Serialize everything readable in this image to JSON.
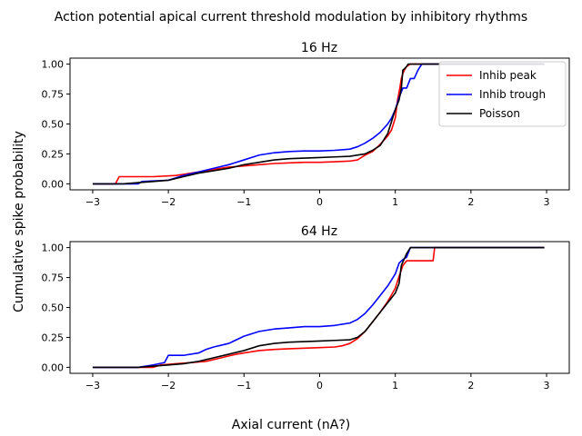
{
  "figure": {
    "suptitle": "Action potential apical current threshold modulation by inhibitory rhythms",
    "shared_ylabel": "Cumulative spike probability",
    "shared_xlabel": "Axial current (nA?)"
  },
  "chart_data": [
    {
      "type": "line",
      "title": "16 Hz",
      "xlabel": "",
      "ylabel": "",
      "xlim": [
        -3.3,
        3.3
      ],
      "ylim": [
        -0.05,
        1.05
      ],
      "xticks": [
        -3,
        -2,
        -1,
        0,
        1,
        2,
        3
      ],
      "xtick_labels": [
        "−3",
        "−2",
        "−1",
        "0",
        "1",
        "2",
        "3"
      ],
      "yticks": [
        0.0,
        0.25,
        0.5,
        0.75,
        1.0
      ],
      "ytick_labels": [
        "0.00",
        "0.25",
        "0.50",
        "0.75",
        "1.00"
      ],
      "grid": false,
      "legend": "upper-right",
      "series": [
        {
          "name": "Inhib peak",
          "color": "#ff0000",
          "x": [
            -3.0,
            -2.7,
            -2.65,
            -2.2,
            -1.9,
            -1.8,
            -1.6,
            -1.4,
            -1.2,
            -1.0,
            -0.8,
            -0.6,
            -0.4,
            -0.2,
            0.0,
            0.2,
            0.4,
            0.5,
            0.6,
            0.7,
            0.8,
            0.9,
            0.95,
            1.0,
            1.03,
            1.06,
            1.08,
            1.1,
            1.12,
            1.15,
            1.2,
            1.3,
            1.5,
            2.0,
            2.5,
            2.97
          ],
          "y": [
            0.0,
            0.0,
            0.06,
            0.06,
            0.07,
            0.08,
            0.1,
            0.12,
            0.14,
            0.15,
            0.16,
            0.17,
            0.175,
            0.18,
            0.18,
            0.185,
            0.19,
            0.2,
            0.24,
            0.27,
            0.33,
            0.4,
            0.45,
            0.55,
            0.7,
            0.8,
            0.88,
            0.92,
            0.95,
            0.98,
            1.0,
            1.0,
            1.0,
            1.0,
            1.0,
            1.0
          ]
        },
        {
          "name": "Inhib trough",
          "color": "#0000ff",
          "x": [
            -3.0,
            -2.4,
            -2.35,
            -2.0,
            -1.8,
            -1.6,
            -1.4,
            -1.2,
            -1.0,
            -0.8,
            -0.6,
            -0.4,
            -0.2,
            0.0,
            0.2,
            0.4,
            0.5,
            0.6,
            0.7,
            0.8,
            0.9,
            0.95,
            1.0,
            1.05,
            1.1,
            1.15,
            1.2,
            1.25,
            1.3,
            1.32,
            1.35,
            1.5,
            2.0,
            2.5,
            2.97
          ],
          "y": [
            0.0,
            0.0,
            0.02,
            0.03,
            0.07,
            0.1,
            0.13,
            0.16,
            0.2,
            0.24,
            0.26,
            0.27,
            0.275,
            0.275,
            0.28,
            0.29,
            0.31,
            0.34,
            0.38,
            0.43,
            0.5,
            0.55,
            0.62,
            0.72,
            0.8,
            0.8,
            0.88,
            0.88,
            0.95,
            0.97,
            1.0,
            1.0,
            1.0,
            1.0,
            1.0
          ]
        },
        {
          "name": "Poisson",
          "color": "#000000",
          "x": [
            -3.0,
            -2.6,
            -2.4,
            -2.2,
            -2.0,
            -1.8,
            -1.6,
            -1.4,
            -1.2,
            -1.0,
            -0.8,
            -0.6,
            -0.4,
            -0.2,
            0.0,
            0.2,
            0.4,
            0.6,
            0.7,
            0.8,
            0.9,
            0.95,
            1.0,
            1.05,
            1.08,
            1.1,
            1.12,
            1.15,
            1.17,
            1.2,
            1.5,
            2.0,
            2.5,
            2.97
          ],
          "y": [
            0.0,
            0.0,
            0.01,
            0.02,
            0.03,
            0.06,
            0.09,
            0.11,
            0.13,
            0.16,
            0.18,
            0.2,
            0.21,
            0.215,
            0.22,
            0.225,
            0.23,
            0.25,
            0.28,
            0.32,
            0.42,
            0.52,
            0.62,
            0.7,
            0.8,
            0.95,
            0.96,
            0.98,
            1.0,
            1.0,
            1.0,
            1.0,
            1.0,
            1.0
          ]
        }
      ]
    },
    {
      "type": "line",
      "title": "64 Hz",
      "xlabel": "",
      "ylabel": "",
      "xlim": [
        -3.3,
        3.3
      ],
      "ylim": [
        -0.05,
        1.05
      ],
      "xticks": [
        -3,
        -2,
        -1,
        0,
        1,
        2,
        3
      ],
      "xtick_labels": [
        "−3",
        "−2",
        "−1",
        "0",
        "1",
        "2",
        "3"
      ],
      "yticks": [
        0.0,
        0.25,
        0.5,
        0.75,
        1.0
      ],
      "ytick_labels": [
        "0.00",
        "0.25",
        "0.50",
        "0.75",
        "1.00"
      ],
      "grid": false,
      "legend": "none",
      "series": [
        {
          "name": "Inhib peak",
          "color": "#ff0000",
          "x": [
            -3.0,
            -2.2,
            -2.1,
            -1.9,
            -1.7,
            -1.5,
            -1.3,
            -1.1,
            -1.0,
            -0.8,
            -0.6,
            -0.4,
            -0.2,
            0.0,
            0.2,
            0.3,
            0.4,
            0.5,
            0.6,
            0.7,
            0.8,
            0.9,
            1.0,
            1.05,
            1.1,
            1.15,
            1.2,
            1.5,
            1.52,
            2.0,
            2.5,
            2.97
          ],
          "y": [
            0.0,
            0.0,
            0.02,
            0.03,
            0.04,
            0.05,
            0.08,
            0.11,
            0.12,
            0.14,
            0.15,
            0.155,
            0.16,
            0.165,
            0.17,
            0.18,
            0.2,
            0.24,
            0.3,
            0.38,
            0.46,
            0.55,
            0.66,
            0.76,
            0.85,
            0.89,
            0.89,
            0.89,
            1.0,
            1.0,
            1.0,
            1.0
          ]
        },
        {
          "name": "Inhib trough",
          "color": "#0000ff",
          "x": [
            -3.0,
            -2.4,
            -2.2,
            -2.05,
            -2.0,
            -1.8,
            -1.6,
            -1.5,
            -1.4,
            -1.2,
            -1.0,
            -0.8,
            -0.6,
            -0.4,
            -0.2,
            0.0,
            0.2,
            0.4,
            0.5,
            0.6,
            0.7,
            0.8,
            0.9,
            1.0,
            1.05,
            1.1,
            1.15,
            1.2,
            1.3,
            1.5,
            2.0,
            2.5,
            2.97
          ],
          "y": [
            0.0,
            0.0,
            0.02,
            0.04,
            0.1,
            0.1,
            0.12,
            0.15,
            0.17,
            0.2,
            0.26,
            0.3,
            0.32,
            0.33,
            0.34,
            0.34,
            0.35,
            0.37,
            0.4,
            0.45,
            0.52,
            0.6,
            0.68,
            0.78,
            0.87,
            0.9,
            0.92,
            1.0,
            1.0,
            1.0,
            1.0,
            1.0,
            1.0
          ]
        },
        {
          "name": "Poisson",
          "color": "#000000",
          "x": [
            -3.0,
            -2.4,
            -2.2,
            -2.0,
            -1.8,
            -1.6,
            -1.4,
            -1.2,
            -1.0,
            -0.8,
            -0.6,
            -0.4,
            -0.2,
            0.0,
            0.2,
            0.4,
            0.5,
            0.6,
            0.7,
            0.8,
            0.9,
            1.0,
            1.05,
            1.08,
            1.1,
            1.15,
            1.2,
            1.5,
            2.0,
            2.5,
            2.97
          ],
          "y": [
            0.0,
            0.0,
            0.01,
            0.02,
            0.03,
            0.05,
            0.08,
            0.11,
            0.14,
            0.18,
            0.2,
            0.21,
            0.215,
            0.22,
            0.225,
            0.23,
            0.25,
            0.3,
            0.38,
            0.46,
            0.54,
            0.62,
            0.7,
            0.85,
            0.88,
            0.95,
            1.0,
            1.0,
            1.0,
            1.0,
            1.0
          ]
        }
      ]
    }
  ]
}
